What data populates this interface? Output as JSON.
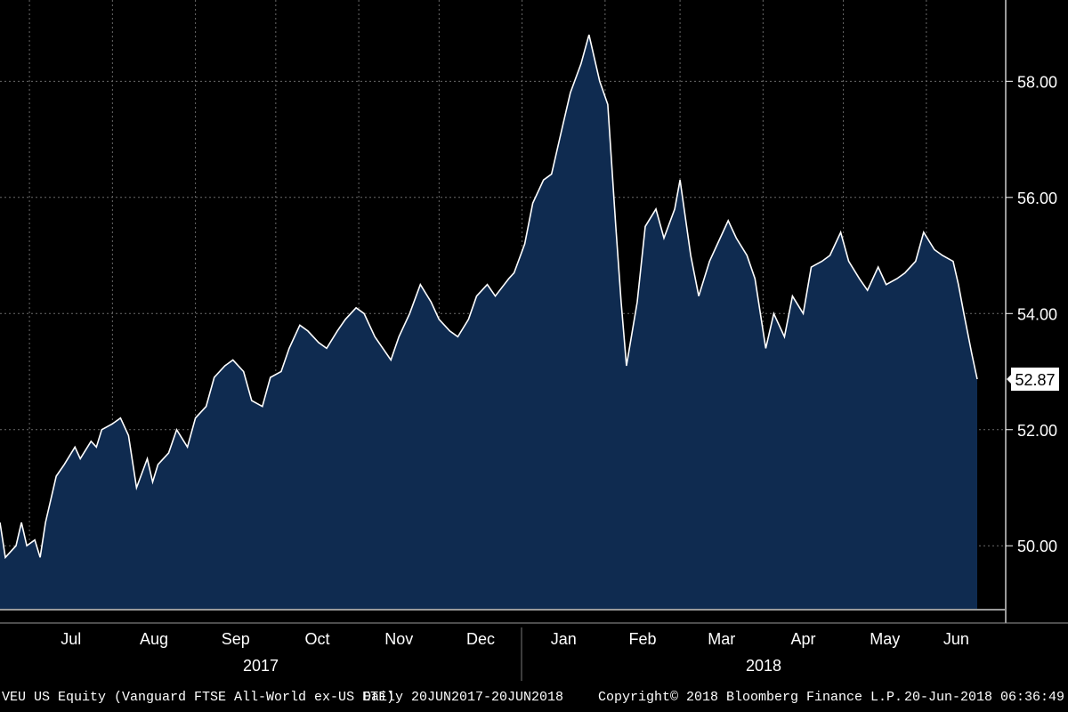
{
  "chart_data": {
    "type": "area",
    "title": "",
    "xlabel": "",
    "ylabel": "",
    "ylim": [
      48.9,
      59.4
    ],
    "y_ticks": [
      "50.00",
      "52.00",
      "54.00",
      "56.00",
      "58.00"
    ],
    "last_value_label": "52.87",
    "months": [
      "Jul",
      "Aug",
      "Sep",
      "Oct",
      "Nov",
      "Dec",
      "Jan",
      "Feb",
      "Mar",
      "Apr",
      "May",
      "Jun"
    ],
    "years": [
      "2017",
      "2018"
    ],
    "grid": true,
    "date_range": [
      "2017-06-20",
      "2018-06-20"
    ],
    "series": [
      {
        "color": "#ffffff",
        "fill": "#0f2b50",
        "points": [
          [
            "2017-06-20",
            50.4
          ],
          [
            "2017-06-22",
            49.8
          ],
          [
            "2017-06-26",
            50.0
          ],
          [
            "2017-06-28",
            50.4
          ],
          [
            "2017-06-30",
            50.0
          ],
          [
            "2017-07-03",
            50.1
          ],
          [
            "2017-07-05",
            49.8
          ],
          [
            "2017-07-07",
            50.4
          ],
          [
            "2017-07-11",
            51.2
          ],
          [
            "2017-07-14",
            51.4
          ],
          [
            "2017-07-18",
            51.7
          ],
          [
            "2017-07-20",
            51.5
          ],
          [
            "2017-07-24",
            51.8
          ],
          [
            "2017-07-26",
            51.7
          ],
          [
            "2017-07-28",
            52.0
          ],
          [
            "2017-08-01",
            52.1
          ],
          [
            "2017-08-04",
            52.2
          ],
          [
            "2017-08-07",
            51.9
          ],
          [
            "2017-08-10",
            51.0
          ],
          [
            "2017-08-14",
            51.5
          ],
          [
            "2017-08-16",
            51.1
          ],
          [
            "2017-08-18",
            51.4
          ],
          [
            "2017-08-22",
            51.6
          ],
          [
            "2017-08-25",
            52.0
          ],
          [
            "2017-08-29",
            51.7
          ],
          [
            "2017-09-01",
            52.2
          ],
          [
            "2017-09-05",
            52.4
          ],
          [
            "2017-09-08",
            52.9
          ],
          [
            "2017-09-12",
            53.1
          ],
          [
            "2017-09-15",
            53.2
          ],
          [
            "2017-09-19",
            53.0
          ],
          [
            "2017-09-22",
            52.5
          ],
          [
            "2017-09-26",
            52.4
          ],
          [
            "2017-09-29",
            52.9
          ],
          [
            "2017-10-03",
            53.0
          ],
          [
            "2017-10-06",
            53.4
          ],
          [
            "2017-10-10",
            53.8
          ],
          [
            "2017-10-13",
            53.7
          ],
          [
            "2017-10-17",
            53.5
          ],
          [
            "2017-10-20",
            53.4
          ],
          [
            "2017-10-24",
            53.7
          ],
          [
            "2017-10-27",
            53.9
          ],
          [
            "2017-10-31",
            54.1
          ],
          [
            "2017-11-03",
            54.0
          ],
          [
            "2017-11-07",
            53.6
          ],
          [
            "2017-11-10",
            53.4
          ],
          [
            "2017-11-13",
            53.2
          ],
          [
            "2017-11-16",
            53.6
          ],
          [
            "2017-11-20",
            54.0
          ],
          [
            "2017-11-24",
            54.5
          ],
          [
            "2017-11-28",
            54.2
          ],
          [
            "2017-12-01",
            53.9
          ],
          [
            "2017-12-05",
            53.7
          ],
          [
            "2017-12-08",
            53.6
          ],
          [
            "2017-12-12",
            53.9
          ],
          [
            "2017-12-15",
            54.3
          ],
          [
            "2017-12-19",
            54.5
          ],
          [
            "2017-12-22",
            54.3
          ],
          [
            "2017-12-27",
            54.6
          ],
          [
            "2017-12-29",
            54.7
          ],
          [
            "2018-01-02",
            55.2
          ],
          [
            "2018-01-05",
            55.9
          ],
          [
            "2018-01-09",
            56.3
          ],
          [
            "2018-01-12",
            56.4
          ],
          [
            "2018-01-16",
            57.2
          ],
          [
            "2018-01-19",
            57.8
          ],
          [
            "2018-01-23",
            58.3
          ],
          [
            "2018-01-26",
            58.8
          ],
          [
            "2018-01-30",
            58.0
          ],
          [
            "2018-02-02",
            57.6
          ],
          [
            "2018-02-05",
            55.5
          ],
          [
            "2018-02-07",
            54.2
          ],
          [
            "2018-02-09",
            53.1
          ],
          [
            "2018-02-13",
            54.2
          ],
          [
            "2018-02-16",
            55.5
          ],
          [
            "2018-02-20",
            55.8
          ],
          [
            "2018-02-23",
            55.3
          ],
          [
            "2018-02-27",
            55.8
          ],
          [
            "2018-03-01",
            56.3
          ],
          [
            "2018-03-05",
            55.0
          ],
          [
            "2018-03-08",
            54.3
          ],
          [
            "2018-03-12",
            54.9
          ],
          [
            "2018-03-15",
            55.2
          ],
          [
            "2018-03-19",
            55.6
          ],
          [
            "2018-03-22",
            55.3
          ],
          [
            "2018-03-26",
            55.0
          ],
          [
            "2018-03-29",
            54.6
          ],
          [
            "2018-04-02",
            53.4
          ],
          [
            "2018-04-05",
            54.0
          ],
          [
            "2018-04-09",
            53.6
          ],
          [
            "2018-04-12",
            54.3
          ],
          [
            "2018-04-16",
            54.0
          ],
          [
            "2018-04-19",
            54.8
          ],
          [
            "2018-04-23",
            54.9
          ],
          [
            "2018-04-26",
            55.0
          ],
          [
            "2018-04-30",
            55.4
          ],
          [
            "2018-05-03",
            54.9
          ],
          [
            "2018-05-07",
            54.6
          ],
          [
            "2018-05-10",
            54.4
          ],
          [
            "2018-05-14",
            54.8
          ],
          [
            "2018-05-17",
            54.5
          ],
          [
            "2018-05-21",
            54.6
          ],
          [
            "2018-05-24",
            54.7
          ],
          [
            "2018-05-28",
            54.9
          ],
          [
            "2018-05-31",
            55.4
          ],
          [
            "2018-06-04",
            55.1
          ],
          [
            "2018-06-07",
            55.0
          ],
          [
            "2018-06-11",
            54.9
          ],
          [
            "2018-06-13",
            54.5
          ],
          [
            "2018-06-15",
            54.0
          ],
          [
            "2018-06-18",
            53.3
          ],
          [
            "2018-06-20",
            52.87
          ]
        ]
      }
    ]
  },
  "footer": {
    "ticker": "VEU US Equity (Vanguard FTSE All-World ex-US ETF)",
    "range": "Daily 20JUN2017-20JUN2018",
    "copyright": "Copyright© 2018 Bloomberg Finance L.P.",
    "timestamp": "20-Jun-2018 06:36:49"
  }
}
